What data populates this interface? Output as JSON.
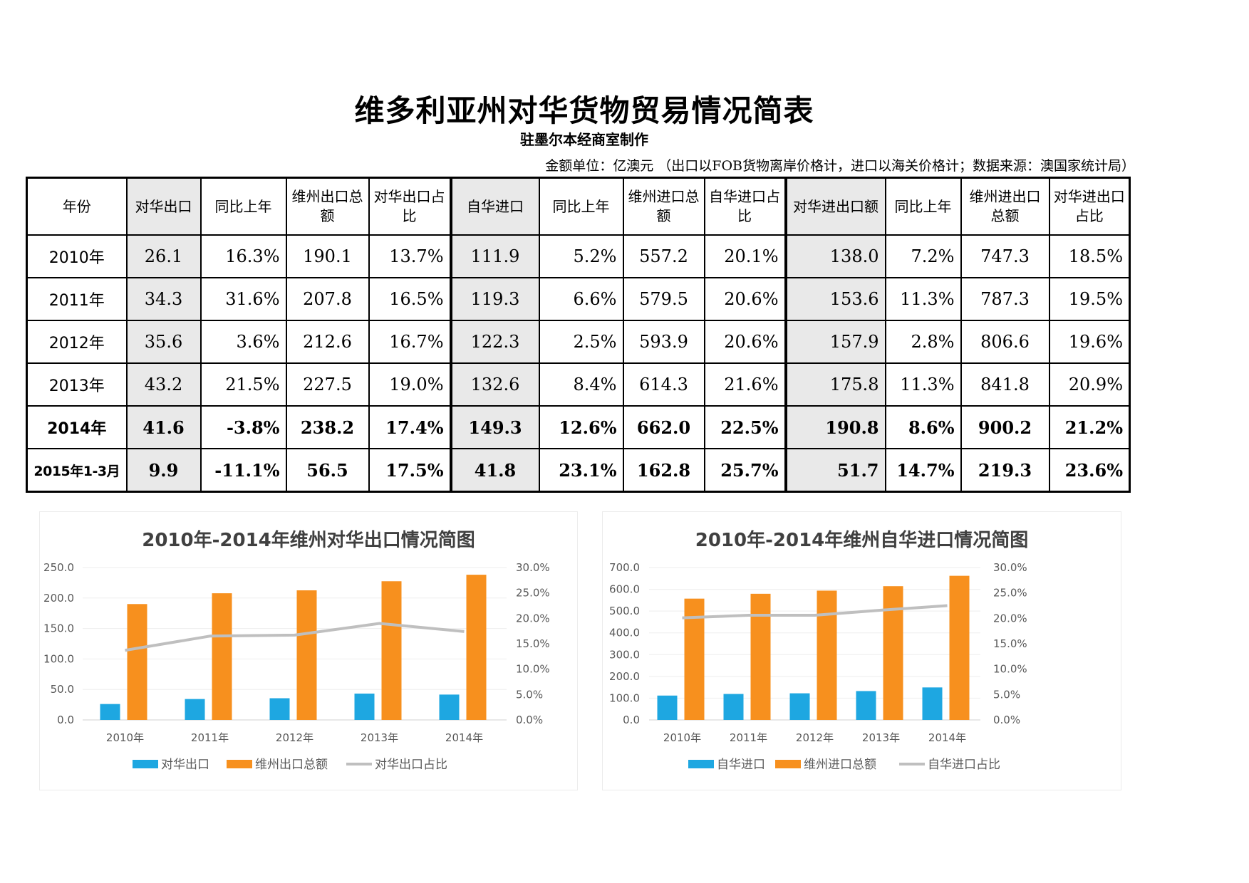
{
  "document": {
    "title": "维多利亚州对华货物贸易情况简表",
    "subtitle": "驻墨尔本经商室制作",
    "unit_note": "金额单位：亿澳元 （出口以FOB货物离岸价格计，进口以海关价格计；数据来源：澳国家统计局）"
  },
  "table": {
    "headers": [
      "年份",
      "对华出口",
      "同比上年",
      "维州出口总额",
      "对华出口占比",
      "自华进口",
      "同比上年",
      "维州进口总额",
      "自华进口占比",
      "对华进出口额",
      "同比上年",
      "维州进出口总额",
      "对华进出口占比"
    ],
    "rows": [
      {
        "year": "2010年",
        "cells": [
          "26.1",
          "16.3%",
          "190.1",
          "13.7%",
          "111.9",
          "5.2%",
          "557.2",
          "20.1%",
          "138.0",
          "7.2%",
          "747.3",
          "18.5%"
        ]
      },
      {
        "year": "2011年",
        "cells": [
          "34.3",
          "31.6%",
          "207.8",
          "16.5%",
          "119.3",
          "6.6%",
          "579.5",
          "20.6%",
          "153.6",
          "11.3%",
          "787.3",
          "19.5%"
        ]
      },
      {
        "year": "2012年",
        "cells": [
          "35.6",
          "3.6%",
          "212.6",
          "16.7%",
          "122.3",
          "2.5%",
          "593.9",
          "20.6%",
          "157.9",
          "2.8%",
          "806.6",
          "19.6%"
        ]
      },
      {
        "year": "2013年",
        "cells": [
          "43.2",
          "21.5%",
          "227.5",
          "19.0%",
          "132.6",
          "8.4%",
          "614.3",
          "21.6%",
          "175.8",
          "11.3%",
          "841.8",
          "20.9%"
        ]
      },
      {
        "year": "2014年",
        "cells": [
          "41.6",
          "-3.8%",
          "238.2",
          "17.4%",
          "149.3",
          "12.6%",
          "662.0",
          "22.5%",
          "190.8",
          "8.6%",
          "900.2",
          "21.2%"
        ]
      },
      {
        "year": "2015年1-3月",
        "cells": [
          "9.9",
          "-11.1%",
          "56.5",
          "17.5%",
          "41.8",
          "23.1%",
          "162.8",
          "25.7%",
          "51.7",
          "14.7%",
          "219.3",
          "23.6%"
        ]
      }
    ]
  },
  "chart_data": [
    {
      "type": "bar",
      "title": "2010年-2014年维州对华出口情况简图",
      "categories": [
        "2010年",
        "2011年",
        "2012年",
        "2013年",
        "2014年"
      ],
      "series": [
        {
          "name": "对华出口",
          "type": "bar",
          "axis": "left",
          "color": "#1ea7e1",
          "values": [
            26.1,
            34.3,
            35.6,
            43.2,
            41.6
          ]
        },
        {
          "name": "维州出口总额",
          "type": "bar",
          "axis": "left",
          "color": "#f7901e",
          "values": [
            190.1,
            207.8,
            212.6,
            227.5,
            238.2
          ]
        },
        {
          "name": "对华出口占比",
          "type": "line",
          "axis": "right",
          "color": "#bfbfbf",
          "values": [
            13.7,
            16.5,
            16.7,
            19.0,
            17.4
          ]
        }
      ],
      "ylim": [
        0,
        250
      ],
      "y_ticks": [
        "250.0",
        "200.0",
        "150.0",
        "100.0",
        "50.0",
        "0.0"
      ],
      "y2lim": [
        0,
        30
      ],
      "y2_ticks": [
        "30.0%",
        "25.0%",
        "20.0%",
        "15.0%",
        "10.0%",
        "5.0%",
        "0.0%"
      ],
      "legend": "bottom"
    },
    {
      "type": "bar",
      "title": "2010年-2014年维州自华进口情况简图",
      "categories": [
        "2010年",
        "2011年",
        "2012年",
        "2013年",
        "2014年"
      ],
      "series": [
        {
          "name": "自华进口",
          "type": "bar",
          "axis": "left",
          "color": "#1ea7e1",
          "values": [
            111.9,
            119.3,
            122.3,
            132.6,
            149.3
          ]
        },
        {
          "name": "维州进口总额",
          "type": "bar",
          "axis": "left",
          "color": "#f7901e",
          "values": [
            557.2,
            579.5,
            593.9,
            614.3,
            662.0
          ]
        },
        {
          "name": "自华进口占比",
          "type": "line",
          "axis": "right",
          "color": "#bfbfbf",
          "values": [
            20.1,
            20.6,
            20.6,
            21.6,
            22.5
          ]
        }
      ],
      "ylim": [
        0,
        700
      ],
      "y_ticks": [
        "700.0",
        "600.0",
        "500.0",
        "400.0",
        "300.0",
        "200.0",
        "100.0",
        "0.0"
      ],
      "y2lim": [
        0,
        30
      ],
      "y2_ticks": [
        "30.0%",
        "25.0%",
        "20.0%",
        "15.0%",
        "10.0%",
        "5.0%",
        "0.0%"
      ],
      "legend": "bottom"
    }
  ]
}
